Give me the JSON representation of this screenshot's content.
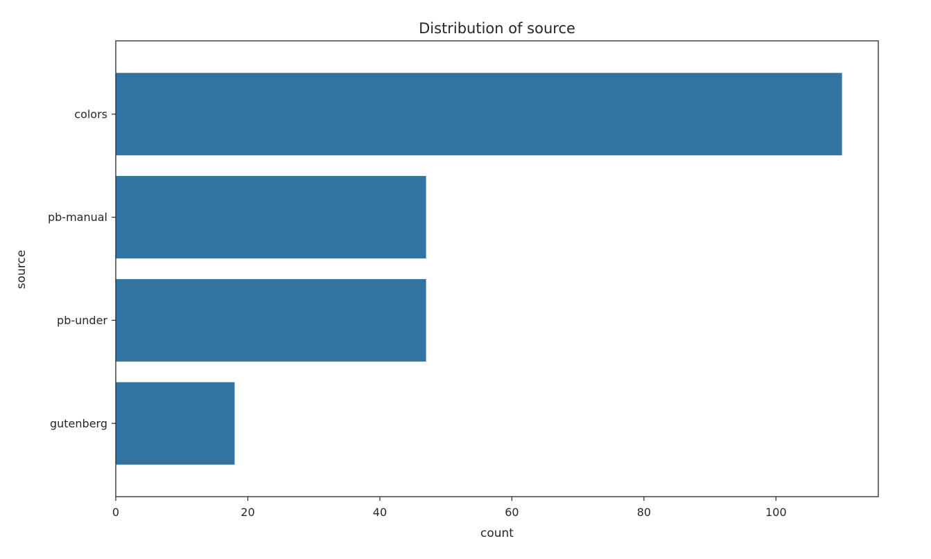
{
  "chart_data": {
    "type": "bar",
    "orientation": "horizontal",
    "title": "Distribution of source",
    "xlabel": "count",
    "ylabel": "source",
    "categories": [
      "colors",
      "pb-manual",
      "pb-under",
      "gutenberg"
    ],
    "values": [
      110,
      47,
      47,
      18
    ],
    "xlim": [
      0,
      115.5
    ],
    "xticks": [
      0,
      20,
      40,
      60,
      80,
      100
    ],
    "grid": false,
    "bar_color": "#3274a1"
  }
}
